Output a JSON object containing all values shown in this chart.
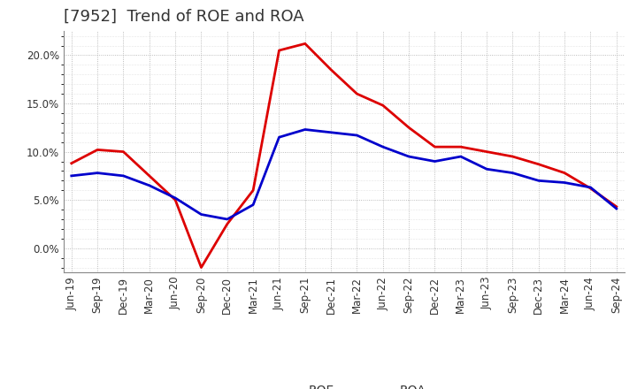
{
  "title": "[7952]  Trend of ROE and ROA",
  "x_labels": [
    "Jun-19",
    "Sep-19",
    "Dec-19",
    "Mar-20",
    "Jun-20",
    "Sep-20",
    "Dec-20",
    "Mar-21",
    "Jun-21",
    "Sep-21",
    "Dec-21",
    "Mar-22",
    "Jun-22",
    "Sep-22",
    "Dec-22",
    "Mar-23",
    "Jun-23",
    "Sep-23",
    "Dec-23",
    "Mar-24",
    "Jun-24",
    "Sep-24"
  ],
  "roe": [
    8.8,
    10.2,
    10.0,
    7.5,
    5.0,
    -2.0,
    2.5,
    6.0,
    20.5,
    21.2,
    18.5,
    16.0,
    14.8,
    12.5,
    10.5,
    10.5,
    10.0,
    9.5,
    8.7,
    7.8,
    6.2,
    4.3
  ],
  "roa": [
    7.5,
    7.8,
    7.5,
    6.5,
    5.2,
    3.5,
    3.0,
    4.5,
    11.5,
    12.3,
    12.0,
    11.7,
    10.5,
    9.5,
    9.0,
    9.5,
    8.2,
    7.8,
    7.0,
    6.8,
    6.3,
    4.1
  ],
  "roe_color": "#dd0000",
  "roa_color": "#0000cc",
  "ylim": [
    -2.5,
    22.5
  ],
  "yticks": [
    0.0,
    5.0,
    10.0,
    15.0,
    20.0
  ],
  "background_color": "#ffffff",
  "plot_bg_color": "#ffffff",
  "grid_color": "#aaaaaa",
  "legend_roe": "ROE",
  "legend_roa": "ROA",
  "title_fontsize": 13,
  "axis_fontsize": 8.5,
  "legend_fontsize": 10
}
